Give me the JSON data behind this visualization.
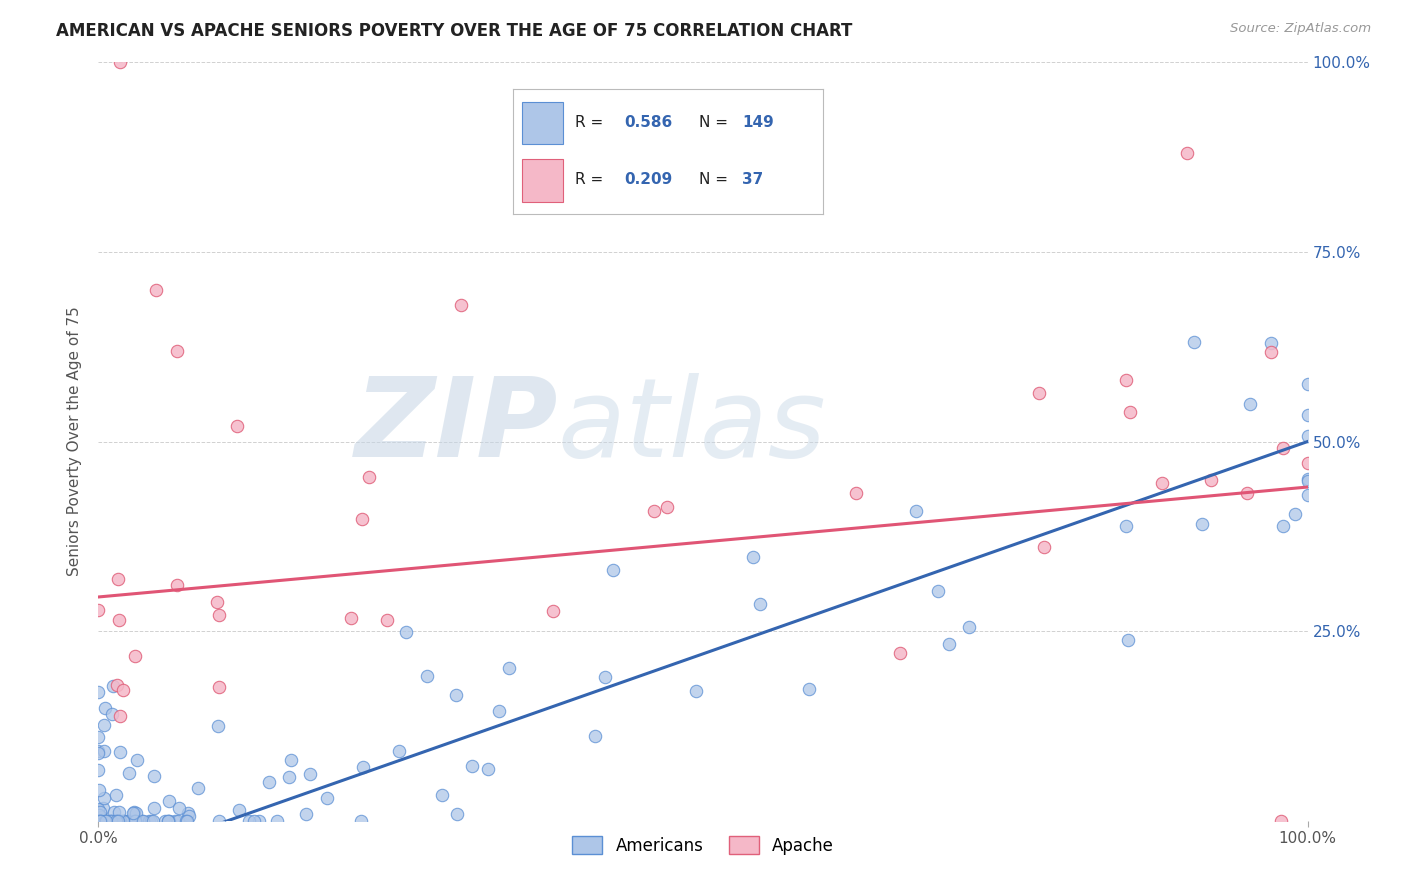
{
  "title": "AMERICAN VS APACHE SENIORS POVERTY OVER THE AGE OF 75 CORRELATION CHART",
  "source": "Source: ZipAtlas.com",
  "ylabel": "Seniors Poverty Over the Age of 75",
  "background_color": "#ffffff",
  "watermark_zip": "ZIP",
  "watermark_atlas": "atlas",
  "american_color": "#aec6e8",
  "apache_color": "#f5b8c8",
  "american_edge_color": "#5b8fd4",
  "apache_edge_color": "#e0607a",
  "american_line_color": "#3465b0",
  "apache_line_color": "#e05575",
  "american_R": 0.586,
  "american_N": 149,
  "apache_R": 0.209,
  "apache_N": 37,
  "american_intercept": -0.06,
  "american_slope": 0.56,
  "apache_intercept": 0.295,
  "apache_slope": 0.145,
  "xlim": [
    0,
    1
  ],
  "ylim": [
    0,
    1
  ],
  "grid_color": "#cccccc",
  "title_color": "#222222",
  "axis_tick_color": "#555555",
  "axis_label_color": "#3465b0",
  "legend_R_color": "#3465b0",
  "legend_N_color": "#3465b0"
}
